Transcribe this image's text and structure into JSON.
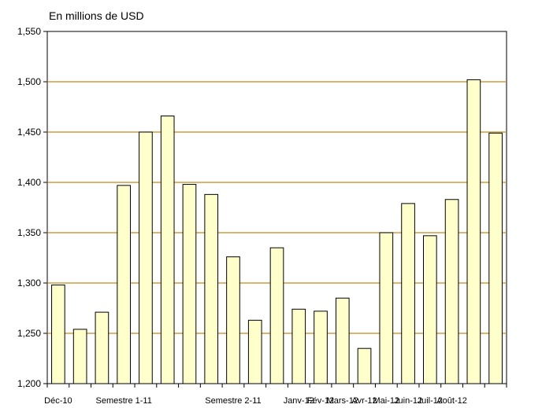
{
  "chart_data": {
    "type": "bar",
    "unit_label": "En millions de USD",
    "ylim": [
      1200,
      1550
    ],
    "y_ticks": [
      1200,
      1250,
      1300,
      1350,
      1400,
      1450,
      1500,
      1550
    ],
    "y_tick_labels": [
      "1,200",
      "1,250",
      "1,300",
      "1,350",
      "1,400",
      "1,450",
      "1,500",
      "1,550"
    ],
    "grid": "horizontal",
    "colors": {
      "bar_fill": "#ffffcc",
      "bar_edge": "#000000",
      "grid": "#c08a1a",
      "axis": "#000000"
    },
    "x_labels": [
      {
        "index": 0,
        "text": "Déc-10"
      },
      {
        "index": 3,
        "text": "Semestre 1-11"
      },
      {
        "index": 8,
        "text": "Semestre 2-11"
      },
      {
        "index": 11,
        "text": "Janv-12"
      },
      {
        "index": 12,
        "text": "Fév-12"
      },
      {
        "index": 13,
        "text": "Mars-12"
      },
      {
        "index": 14,
        "text": "Avr-12"
      },
      {
        "index": 15,
        "text": "Mai-12"
      },
      {
        "index": 16,
        "text": "Juin-12"
      },
      {
        "index": 17,
        "text": "Juil-12"
      },
      {
        "index": 18,
        "text": "Août-12"
      }
    ],
    "values": [
      1298,
      1254,
      1271,
      1397,
      1450,
      1466,
      1398,
      1388,
      1326,
      1263,
      1335,
      1274,
      1272,
      1285,
      1235,
      1350,
      1379,
      1347,
      1383,
      1502,
      1449
    ]
  }
}
